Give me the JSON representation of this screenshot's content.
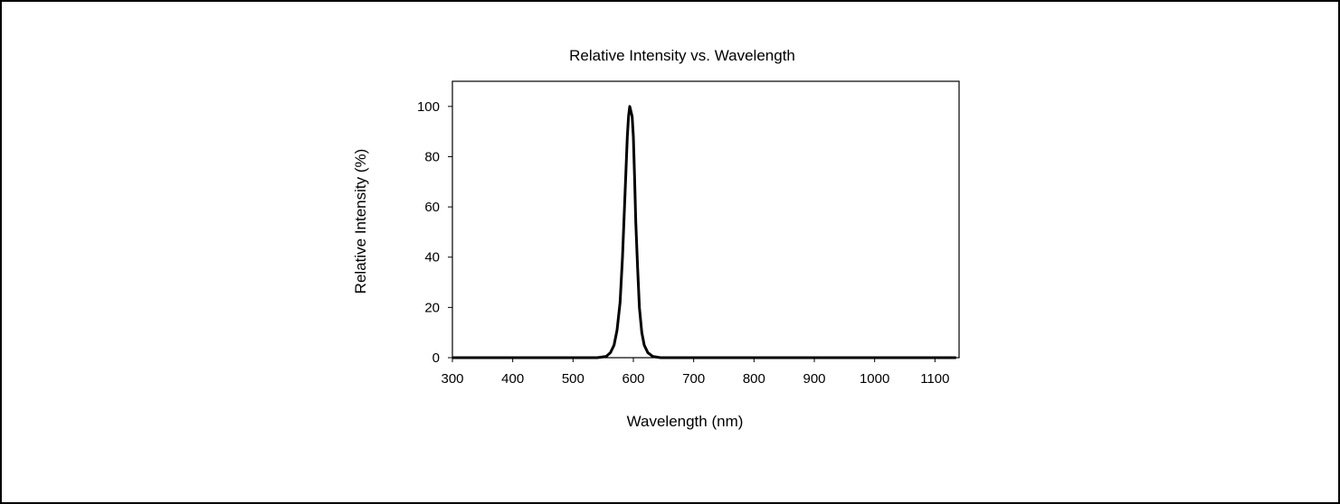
{
  "chart_data": {
    "type": "line",
    "title": "Relative Intensity vs. Wavelength",
    "xlabel": "Wavelength (nm)",
    "ylabel": "Relative Intensity (%)",
    "xlim": [
      300,
      1140
    ],
    "ylim": [
      0,
      110
    ],
    "x_ticks": [
      300,
      400,
      500,
      600,
      700,
      800,
      900,
      1000,
      1100
    ],
    "y_ticks": [
      0,
      20,
      40,
      60,
      80,
      100
    ],
    "x_tick_labels": [
      "300",
      "400",
      "500",
      "600",
      "700",
      "800",
      "900",
      "1000",
      "1100"
    ],
    "y_tick_labels": [
      "0",
      "20",
      "40",
      "60",
      "80",
      "100"
    ],
    "grid": false,
    "series": [
      {
        "color": "#000000",
        "x": [
          300,
          400,
          500,
          540,
          555,
          562,
          568,
          573,
          578,
          582,
          585,
          588,
          590,
          592,
          594,
          596,
          598,
          600,
          602,
          604,
          607,
          610,
          614,
          618,
          624,
          632,
          645,
          700,
          800,
          900,
          1000,
          1100,
          1135
        ],
        "y": [
          0,
          0,
          0,
          0,
          0.5,
          2,
          5,
          11,
          22,
          40,
          58,
          76,
          88,
          96,
          100,
          98,
          96,
          88,
          72,
          54,
          36,
          20,
          10,
          5,
          2,
          0.5,
          0,
          0,
          0,
          0,
          0,
          0,
          0
        ]
      }
    ]
  }
}
